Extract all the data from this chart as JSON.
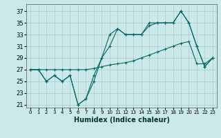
{
  "title": "",
  "xlabel": "Humidex (Indice chaleur)",
  "bg_color": "#cce9e9",
  "grid_color": "#aacccc",
  "line_color": "#006666",
  "xlim": [
    -0.5,
    23.5
  ],
  "ylim": [
    20.5,
    38.2
  ],
  "xticks": [
    0,
    1,
    2,
    3,
    4,
    5,
    6,
    7,
    8,
    9,
    10,
    11,
    12,
    13,
    14,
    15,
    16,
    17,
    18,
    19,
    20,
    21,
    22,
    23
  ],
  "xticklabels": [
    "0",
    "1",
    "2",
    "3",
    "4",
    "5",
    "6",
    "7",
    "8",
    "9",
    "10",
    "11",
    "12",
    "13",
    "14",
    "15",
    "16",
    "17",
    "18",
    "19",
    "20",
    "21",
    "22",
    "23"
  ],
  "yticks": [
    21,
    23,
    25,
    27,
    29,
    31,
    33,
    35,
    37
  ],
  "line1_x": [
    0,
    1,
    2,
    3,
    4,
    5,
    6,
    7,
    8,
    9,
    10,
    11,
    12,
    13,
    14,
    15,
    16,
    17,
    18,
    19,
    20,
    21,
    22,
    23
  ],
  "line1_y": [
    27,
    27,
    25,
    26,
    25,
    26,
    21,
    22,
    26,
    29,
    33,
    34,
    33,
    33,
    33,
    35,
    35,
    35,
    35,
    37,
    35,
    31,
    27.5,
    29
  ],
  "line2_x": [
    0,
    1,
    2,
    3,
    4,
    5,
    6,
    7,
    8,
    9,
    10,
    11,
    12,
    13,
    14,
    15,
    16,
    17,
    18,
    19,
    20,
    21,
    22,
    23
  ],
  "line2_y": [
    27,
    27,
    27,
    27,
    27,
    27,
    27,
    27,
    27.2,
    27.5,
    27.8,
    28,
    28.2,
    28.5,
    29,
    29.5,
    30,
    30.5,
    31,
    31.5,
    31.8,
    28,
    28,
    29
  ],
  "line3_x": [
    0,
    1,
    2,
    3,
    4,
    5,
    6,
    7,
    8,
    9,
    10,
    11,
    12,
    13,
    14,
    15,
    16,
    17,
    18,
    19,
    20,
    21,
    22,
    23
  ],
  "line3_y": [
    27,
    27,
    25,
    26,
    25,
    26,
    21,
    22,
    25,
    29,
    31,
    34,
    33,
    33,
    33,
    34.5,
    35,
    35,
    35,
    37,
    35,
    31,
    27.5,
    29
  ]
}
